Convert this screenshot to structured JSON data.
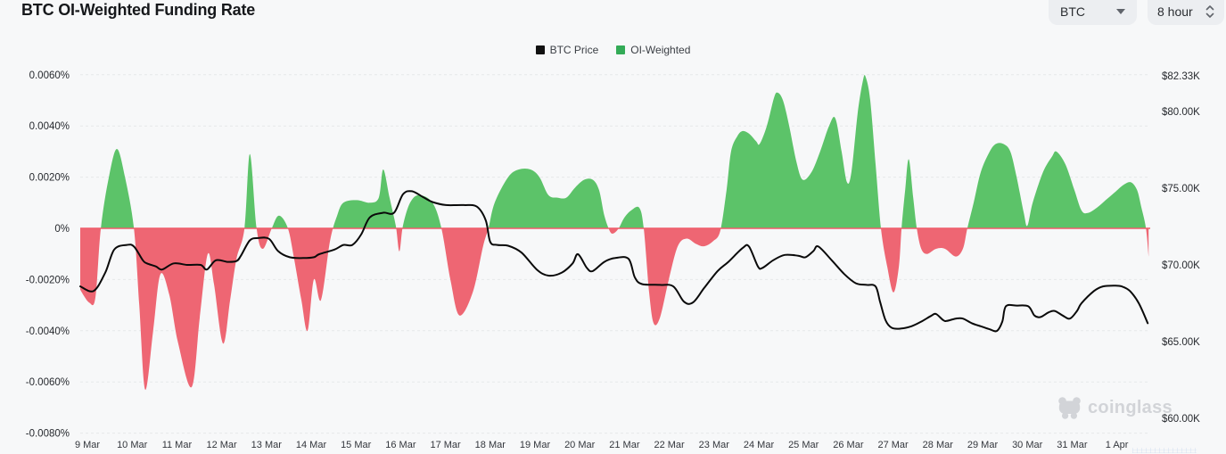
{
  "header": {
    "title": "BTC OI-Weighted Funding Rate",
    "symbol_select": {
      "value": "BTC"
    },
    "interval_select": {
      "value": "8 hour"
    }
  },
  "legend": {
    "items": [
      {
        "label": "BTC Price",
        "color": "#111111"
      },
      {
        "label": "OI-Weighted",
        "color": "#33ab57"
      }
    ]
  },
  "watermark": {
    "text": "coinglass"
  },
  "colors": {
    "background": "#f7f8f9",
    "grid_line": "#e6e7e9",
    "zero_line": "#ef5c6b",
    "axis_text": "#26292e",
    "date_text": "#33363c",
    "positive_area": "#5cc369",
    "negative_area": "#ee6673",
    "price_line": "#0a0a0a"
  },
  "chart_data": {
    "type": "area",
    "title": "BTC OI-Weighted Funding Rate",
    "grid": "dashed-horizontal",
    "legend_position": "top-center",
    "left_axis": {
      "name": "funding-rate-percent",
      "ticks": [
        "0.0060%",
        "0.0040%",
        "0.0020%",
        "0%",
        "-0.0020%",
        "-0.0040%",
        "-0.0060%",
        "-0.0080%"
      ],
      "tick_values": [
        0.006,
        0.004,
        0.002,
        0,
        -0.002,
        -0.004,
        -0.006,
        -0.008
      ],
      "range": [
        -0.008,
        0.006
      ]
    },
    "right_axis": {
      "name": "btc-price-usd",
      "ticks": [
        "$82.33K",
        "$80.00K",
        "$75.00K",
        "$70.00K",
        "$65.00K",
        "$60.00K"
      ],
      "tick_values": [
        82.33,
        80,
        75,
        70,
        65,
        60
      ],
      "range_visible": [
        58.7,
        82.33
      ]
    },
    "x_axis": {
      "tick_labels": [
        "9 Mar",
        "10 Mar",
        "11 Mar",
        "12 Mar",
        "13 Mar",
        "14 Mar",
        "15 Mar",
        "16 Mar",
        "17 Mar",
        "18 Mar",
        "19 Mar",
        "20 Mar",
        "21 Mar",
        "22 Mar",
        "23 Mar",
        "24 Mar",
        "25 Mar",
        "26 Mar",
        "27 Mar",
        "28 Mar",
        "29 Mar",
        "30 Mar",
        "31 Mar",
        "1 Apr"
      ],
      "unit": "day offset from 9 Mar"
    },
    "series": [
      {
        "name": "OI-Weighted",
        "type": "area",
        "unit": "percent",
        "positive_color": "#5cc369",
        "negative_color": "#ee6673",
        "points": [
          [
            -0.16,
            -0.0024
          ],
          [
            0.04,
            -0.0029
          ],
          [
            0.18,
            -0.0027
          ],
          [
            0.3,
            0
          ],
          [
            0.48,
            0.002
          ],
          [
            0.66,
            0.0031
          ],
          [
            0.84,
            0.002
          ],
          [
            1.04,
            0
          ],
          [
            1.16,
            -0.003
          ],
          [
            1.29,
            -0.0063
          ],
          [
            1.47,
            -0.004
          ],
          [
            1.63,
            -0.0018
          ],
          [
            1.83,
            -0.0026
          ],
          [
            2.03,
            -0.0045
          ],
          [
            2.33,
            -0.0062
          ],
          [
            2.51,
            -0.0035
          ],
          [
            2.69,
            -0.001
          ],
          [
            2.83,
            -0.0022
          ],
          [
            3.03,
            -0.0045
          ],
          [
            3.19,
            -0.0028
          ],
          [
            3.33,
            -0.0012
          ],
          [
            3.51,
            0
          ],
          [
            3.63,
            0.0029
          ],
          [
            3.78,
            0
          ],
          [
            3.92,
            -0.0008
          ],
          [
            4.12,
            0
          ],
          [
            4.28,
            0.0005
          ],
          [
            4.48,
            0
          ],
          [
            4.62,
            -0.0012
          ],
          [
            4.78,
            -0.0028
          ],
          [
            4.92,
            -0.004
          ],
          [
            5.06,
            -0.002
          ],
          [
            5.22,
            -0.0028
          ],
          [
            5.42,
            -0.0005
          ],
          [
            5.58,
            0.0005
          ],
          [
            5.72,
            0.001
          ],
          [
            6.02,
            0.0011
          ],
          [
            6.31,
            0.001
          ],
          [
            6.51,
            0.0012
          ],
          [
            6.61,
            0.0023
          ],
          [
            6.75,
            0.0012
          ],
          [
            6.89,
            0.0001
          ],
          [
            6.97,
            -0.0009
          ],
          [
            7.05,
            0.0001
          ],
          [
            7.21,
            0.001
          ],
          [
            7.41,
            0.0013
          ],
          [
            7.71,
            0.001
          ],
          [
            7.91,
            0
          ],
          [
            8.11,
            -0.002
          ],
          [
            8.31,
            -0.0034
          ],
          [
            8.61,
            -0.0025
          ],
          [
            8.84,
            -0.0007
          ],
          [
            8.96,
            0
          ],
          [
            9.1,
            0.001
          ],
          [
            9.4,
            0.002
          ],
          [
            9.64,
            0.0023
          ],
          [
            9.9,
            0.0023
          ],
          [
            10.1,
            0.002
          ],
          [
            10.3,
            0.0013
          ],
          [
            10.5,
            0.0012
          ],
          [
            10.7,
            0.0012
          ],
          [
            10.9,
            0.0016
          ],
          [
            11.1,
            0.0019
          ],
          [
            11.29,
            0.0019
          ],
          [
            11.43,
            0.0015
          ],
          [
            11.55,
            0.0005
          ],
          [
            11.67,
            -0.0001
          ],
          [
            11.75,
            -0.0002
          ],
          [
            11.87,
            0
          ],
          [
            11.99,
            0.0004
          ],
          [
            12.15,
            0.0007
          ],
          [
            12.33,
            0.0008
          ],
          [
            12.43,
            0
          ],
          [
            12.55,
            -0.0025
          ],
          [
            12.65,
            -0.0037
          ],
          [
            12.79,
            -0.0035
          ],
          [
            12.99,
            -0.002
          ],
          [
            13.19,
            -0.0007
          ],
          [
            13.39,
            -0.0004
          ],
          [
            13.59,
            -0.0006
          ],
          [
            13.78,
            -0.0007
          ],
          [
            13.98,
            -0.0005
          ],
          [
            14.14,
            -0.0001
          ],
          [
            14.28,
            0.0015
          ],
          [
            14.38,
            0.003
          ],
          [
            14.52,
            0.0036
          ],
          [
            14.64,
            0.0038
          ],
          [
            14.78,
            0.0037
          ],
          [
            14.94,
            0.0034
          ],
          [
            15.02,
            0.0033
          ],
          [
            15.18,
            0.004
          ],
          [
            15.34,
            0.0051
          ],
          [
            15.42,
            0.0053
          ],
          [
            15.54,
            0.005
          ],
          [
            15.68,
            0.004
          ],
          [
            15.84,
            0.0026
          ],
          [
            15.98,
            0.0019
          ],
          [
            16.18,
            0.0022
          ],
          [
            16.37,
            0.003
          ],
          [
            16.57,
            0.004
          ],
          [
            16.71,
            0.0043
          ],
          [
            16.85,
            0.003
          ],
          [
            16.97,
            0.0018
          ],
          [
            17.07,
            0.0022
          ],
          [
            17.21,
            0.0045
          ],
          [
            17.33,
            0.0058
          ],
          [
            17.39,
            0.0059
          ],
          [
            17.49,
            0.005
          ],
          [
            17.61,
            0.0025
          ],
          [
            17.73,
            0
          ],
          [
            17.87,
            -0.0015
          ],
          [
            18.01,
            -0.0025
          ],
          [
            18.13,
            -0.0015
          ],
          [
            18.19,
            0
          ],
          [
            18.27,
            0.0015
          ],
          [
            18.35,
            0.0027
          ],
          [
            18.45,
            0.0012
          ],
          [
            18.53,
            0
          ],
          [
            18.63,
            -0.0008
          ],
          [
            18.76,
            -0.001
          ],
          [
            18.96,
            -0.0008
          ],
          [
            19.16,
            -0.0008
          ],
          [
            19.4,
            -0.0011
          ],
          [
            19.56,
            -0.0008
          ],
          [
            19.66,
            0
          ],
          [
            19.8,
            0.001
          ],
          [
            19.96,
            0.0022
          ],
          [
            20.16,
            0.003
          ],
          [
            20.3,
            0.0033
          ],
          [
            20.46,
            0.0033
          ],
          [
            20.62,
            0.003
          ],
          [
            20.76,
            0.002
          ],
          [
            20.92,
            0.0006
          ],
          [
            21.0,
            0.0001
          ],
          [
            21.12,
            0.001
          ],
          [
            21.35,
            0.0022
          ],
          [
            21.55,
            0.0028
          ],
          [
            21.65,
            0.003
          ],
          [
            21.85,
            0.0025
          ],
          [
            22.05,
            0.0015
          ],
          [
            22.21,
            0.0007
          ],
          [
            22.35,
            0.0006
          ],
          [
            22.55,
            0.0008
          ],
          [
            22.75,
            0.0011
          ],
          [
            22.95,
            0.0014
          ],
          [
            23.15,
            0.0017
          ],
          [
            23.31,
            0.0018
          ],
          [
            23.45,
            0.0015
          ],
          [
            23.55,
            0.0008
          ],
          [
            23.65,
            0
          ],
          [
            23.71,
            -0.0011
          ]
        ]
      },
      {
        "name": "BTC Price",
        "type": "line",
        "unit": "USD thousands",
        "color": "#0a0a0a",
        "points": [
          [
            -0.16,
            68.6
          ],
          [
            0.14,
            68.3
          ],
          [
            0.4,
            69.5
          ],
          [
            0.6,
            71.0
          ],
          [
            0.88,
            71.3
          ],
          [
            1.04,
            71.2
          ],
          [
            1.24,
            70.3
          ],
          [
            1.33,
            70.1
          ],
          [
            1.53,
            69.9
          ],
          [
            1.67,
            69.7
          ],
          [
            1.93,
            70.1
          ],
          [
            2.23,
            70.0
          ],
          [
            2.53,
            70.0
          ],
          [
            2.67,
            69.7
          ],
          [
            2.87,
            70.3
          ],
          [
            3.13,
            70.2
          ],
          [
            3.33,
            70.25
          ],
          [
            3.43,
            70.6
          ],
          [
            3.63,
            71.6
          ],
          [
            3.82,
            71.75
          ],
          [
            4.06,
            71.7
          ],
          [
            4.26,
            70.9
          ],
          [
            4.52,
            70.5
          ],
          [
            4.82,
            70.45
          ],
          [
            5.06,
            70.5
          ],
          [
            5.18,
            70.7
          ],
          [
            5.52,
            71.0
          ],
          [
            5.72,
            71.3
          ],
          [
            5.92,
            71.3
          ],
          [
            6.12,
            72.0
          ],
          [
            6.31,
            73.1
          ],
          [
            6.61,
            73.4
          ],
          [
            6.85,
            73.4
          ],
          [
            7.05,
            74.6
          ],
          [
            7.25,
            74.8
          ],
          [
            7.51,
            74.4
          ],
          [
            7.71,
            74.1
          ],
          [
            8.01,
            73.9
          ],
          [
            8.41,
            73.9
          ],
          [
            8.7,
            73.8
          ],
          [
            8.9,
            72.9
          ],
          [
            9.0,
            71.5
          ],
          [
            9.16,
            71.3
          ],
          [
            9.4,
            71.25
          ],
          [
            9.7,
            70.8
          ],
          [
            10.04,
            69.7
          ],
          [
            10.3,
            69.3
          ],
          [
            10.6,
            69.5
          ],
          [
            10.84,
            70.1
          ],
          [
            10.96,
            70.7
          ],
          [
            11.16,
            69.8
          ],
          [
            11.29,
            69.6
          ],
          [
            11.55,
            70.2
          ],
          [
            11.79,
            70.45
          ],
          [
            12.09,
            70.4
          ],
          [
            12.23,
            69.2
          ],
          [
            12.39,
            68.75
          ],
          [
            12.79,
            68.7
          ],
          [
            13.09,
            68.6
          ],
          [
            13.33,
            67.6
          ],
          [
            13.53,
            67.55
          ],
          [
            13.78,
            68.5
          ],
          [
            14.08,
            69.6
          ],
          [
            14.32,
            70.2
          ],
          [
            14.64,
            71.1
          ],
          [
            14.78,
            71.2
          ],
          [
            14.98,
            69.9
          ],
          [
            15.08,
            69.8
          ],
          [
            15.32,
            70.3
          ],
          [
            15.58,
            70.65
          ],
          [
            15.88,
            70.6
          ],
          [
            16.04,
            70.5
          ],
          [
            16.22,
            70.9
          ],
          [
            16.33,
            71.2
          ],
          [
            16.63,
            70.3
          ],
          [
            16.91,
            69.4
          ],
          [
            17.17,
            68.8
          ],
          [
            17.41,
            68.7
          ],
          [
            17.61,
            68.6
          ],
          [
            17.71,
            67.6
          ],
          [
            17.83,
            66.4
          ],
          [
            17.97,
            65.9
          ],
          [
            18.17,
            65.85
          ],
          [
            18.41,
            66.0
          ],
          [
            18.63,
            66.3
          ],
          [
            18.86,
            66.7
          ],
          [
            18.96,
            66.8
          ],
          [
            19.12,
            66.4
          ],
          [
            19.2,
            66.35
          ],
          [
            19.4,
            66.5
          ],
          [
            19.56,
            66.5
          ],
          [
            19.76,
            66.2
          ],
          [
            19.96,
            66.0
          ],
          [
            20.16,
            65.8
          ],
          [
            20.32,
            65.7
          ],
          [
            20.44,
            66.3
          ],
          [
            20.52,
            67.3
          ],
          [
            20.76,
            67.35
          ],
          [
            21.02,
            67.3
          ],
          [
            21.16,
            66.7
          ],
          [
            21.29,
            66.6
          ],
          [
            21.47,
            66.9
          ],
          [
            21.61,
            67.0
          ],
          [
            21.79,
            66.7
          ],
          [
            21.95,
            66.5
          ],
          [
            22.11,
            67.0
          ],
          [
            22.21,
            67.5
          ],
          [
            22.49,
            68.3
          ],
          [
            22.69,
            68.6
          ],
          [
            22.95,
            68.65
          ],
          [
            23.11,
            68.6
          ],
          [
            23.29,
            68.3
          ],
          [
            23.49,
            67.5
          ],
          [
            23.69,
            66.2
          ]
        ]
      }
    ]
  }
}
